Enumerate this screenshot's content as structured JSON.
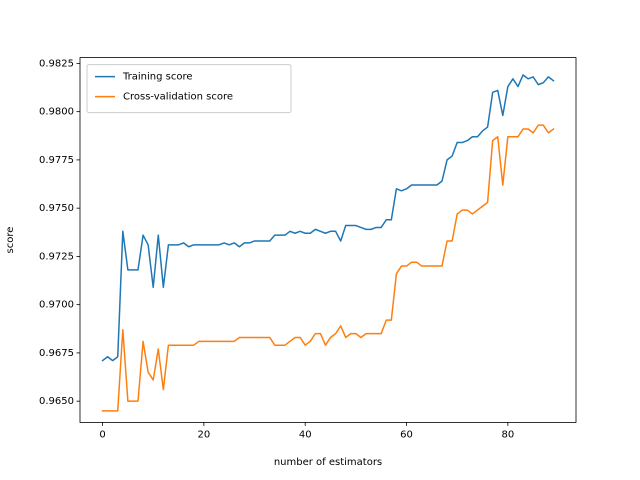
{
  "chart_data": {
    "type": "line",
    "xlabel": "number of estimators",
    "ylabel": "score",
    "x": [
      0,
      1,
      2,
      3,
      4,
      5,
      6,
      7,
      8,
      9,
      10,
      11,
      12,
      13,
      14,
      15,
      16,
      17,
      18,
      19,
      20,
      21,
      22,
      23,
      24,
      25,
      26,
      27,
      28,
      29,
      30,
      31,
      32,
      33,
      34,
      35,
      36,
      37,
      38,
      39,
      40,
      41,
      42,
      43,
      44,
      45,
      46,
      47,
      48,
      49,
      50,
      51,
      52,
      53,
      54,
      55,
      56,
      57,
      58,
      59,
      60,
      61,
      62,
      63,
      64,
      65,
      66,
      67,
      68,
      69,
      70,
      71,
      72,
      73,
      74,
      75,
      76,
      77,
      78,
      79,
      80,
      81,
      82,
      83,
      84,
      85,
      86,
      87,
      88,
      89
    ],
    "series": [
      {
        "name": "Training score",
        "color": "#1f77b4",
        "values": [
          0.9671,
          0.9673,
          0.9671,
          0.9673,
          0.9738,
          0.9718,
          0.9718,
          0.9718,
          0.9736,
          0.9731,
          0.9709,
          0.9736,
          0.9709,
          0.9731,
          0.9731,
          0.9731,
          0.9732,
          0.973,
          0.9731,
          0.9731,
          0.9731,
          0.9731,
          0.9731,
          0.9731,
          0.9732,
          0.9731,
          0.9732,
          0.973,
          0.9732,
          0.9732,
          0.9733,
          0.9733,
          0.9733,
          0.9733,
          0.9736,
          0.9736,
          0.9736,
          0.9738,
          0.9737,
          0.9738,
          0.9737,
          0.9737,
          0.9739,
          0.9738,
          0.9737,
          0.9738,
          0.9738,
          0.9733,
          0.9741,
          0.9741,
          0.9741,
          0.974,
          0.9739,
          0.9739,
          0.974,
          0.974,
          0.9744,
          0.9744,
          0.976,
          0.9759,
          0.976,
          0.9762,
          0.9762,
          0.9762,
          0.9762,
          0.9762,
          0.9762,
          0.9764,
          0.9775,
          0.9777,
          0.9784,
          0.9784,
          0.9785,
          0.9787,
          0.9787,
          0.979,
          0.9792,
          0.981,
          0.9811,
          0.9798,
          0.9813,
          0.9817,
          0.9813,
          0.9819,
          0.9817,
          0.9818,
          0.9814,
          0.9815,
          0.9818,
          0.9816
        ]
      },
      {
        "name": "Cross-validation score",
        "color": "#ff7f0e",
        "values": [
          0.9645,
          0.9645,
          0.9645,
          0.9645,
          0.9687,
          0.965,
          0.965,
          0.965,
          0.9681,
          0.9665,
          0.9661,
          0.9677,
          0.9656,
          0.9679,
          0.9679,
          0.9679,
          0.9679,
          0.9679,
          0.9679,
          0.9681,
          0.9681,
          0.9681,
          0.9681,
          0.9681,
          0.9681,
          0.9681,
          0.9681,
          0.9683,
          0.9683,
          0.9683,
          0.9683,
          0.9683,
          0.9683,
          0.9683,
          0.9679,
          0.9679,
          0.9679,
          0.9681,
          0.9683,
          0.9683,
          0.9679,
          0.9681,
          0.9685,
          0.9685,
          0.9679,
          0.9683,
          0.9685,
          0.9689,
          0.9683,
          0.9685,
          0.9685,
          0.9683,
          0.9685,
          0.9685,
          0.9685,
          0.9685,
          0.9692,
          0.9692,
          0.9716,
          0.972,
          0.972,
          0.9722,
          0.9722,
          0.972,
          0.972,
          0.972,
          0.972,
          0.972,
          0.9733,
          0.9733,
          0.9747,
          0.9749,
          0.9749,
          0.9747,
          0.9749,
          0.9751,
          0.9753,
          0.9785,
          0.9787,
          0.9762,
          0.9787,
          0.9787,
          0.9787,
          0.9791,
          0.9791,
          0.9789,
          0.9793,
          0.9793,
          0.9789,
          0.9791
        ]
      }
    ],
    "xlim": [
      -4.45,
      93.45
    ],
    "ylim": [
      0.9639,
      0.9828
    ],
    "xticks": [
      0,
      20,
      40,
      60,
      80
    ],
    "yticks": [
      {
        "value": 0.965,
        "label": "0.9650"
      },
      0.9675,
      {
        "value": 0.97,
        "label": "0.9700"
      },
      0.9725,
      {
        "value": 0.975,
        "label": "0.9750"
      },
      0.9775,
      {
        "value": 0.98,
        "label": "0.9800"
      },
      0.9825
    ],
    "legend": "upper left",
    "grid": false
  }
}
